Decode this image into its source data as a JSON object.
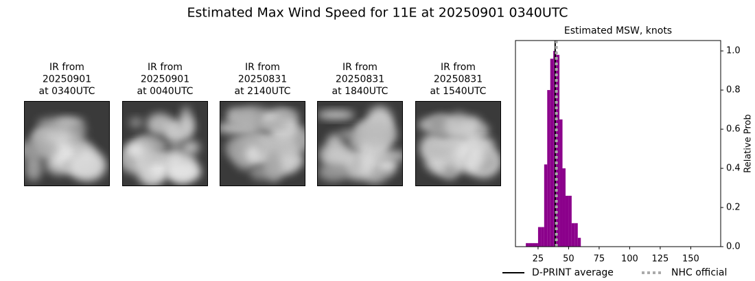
{
  "title": "Estimated Max Wind Speed for 11E at 20250901 0340UTC",
  "panels": [
    {
      "lines": [
        "IR from",
        "20250901",
        "at 0340UTC"
      ]
    },
    {
      "lines": [
        "IR from",
        "20250901",
        "at 0040UTC"
      ]
    },
    {
      "lines": [
        "IR from",
        "20250831",
        "at 2140UTC"
      ]
    },
    {
      "lines": [
        "IR from",
        "20250831",
        "at 1840UTC"
      ]
    },
    {
      "lines": [
        "IR from",
        "20250831",
        "at 1540UTC"
      ]
    }
  ],
  "chart_data": {
    "type": "histogram",
    "title": "Estimated MSW, knots",
    "y_label": "Relative Prob",
    "color": "#8b008b",
    "bins": [
      15,
      17.5,
      20,
      22.5,
      25,
      27.5,
      30,
      32.5,
      35,
      37.5,
      40,
      42.5,
      45,
      47.5,
      50,
      52.5,
      55,
      57.5,
      60
    ],
    "counts": [
      0.018,
      0.018,
      0.018,
      0.018,
      0.1,
      0.1,
      0.42,
      0.8,
      0.96,
      1.0,
      0.98,
      0.65,
      0.4,
      0.26,
      0.26,
      0.12,
      0.12,
      0.045
    ],
    "markers": [
      {
        "name": "D-PRINT average",
        "value": 39,
        "color": "#000000",
        "style": "solid"
      },
      {
        "name": "NHC official",
        "value": 40,
        "color": "#aaaaaa",
        "style": "dotted"
      }
    ],
    "xlim": [
      6.5,
      174.5
    ],
    "xticks": [
      25,
      50,
      75,
      100,
      125,
      150
    ],
    "ylim": [
      0,
      1.053
    ],
    "yticks": [
      {
        "value": 0,
        "label": "0.0"
      },
      {
        "value": 0.2,
        "label": "0.2"
      },
      {
        "value": 0.4,
        "label": "0.4"
      },
      {
        "value": 0.6,
        "label": "0.6"
      },
      {
        "value": 0.8,
        "label": "0.8"
      },
      {
        "value": 1,
        "label": "1.0"
      }
    ],
    "y_axis_side": "right"
  }
}
